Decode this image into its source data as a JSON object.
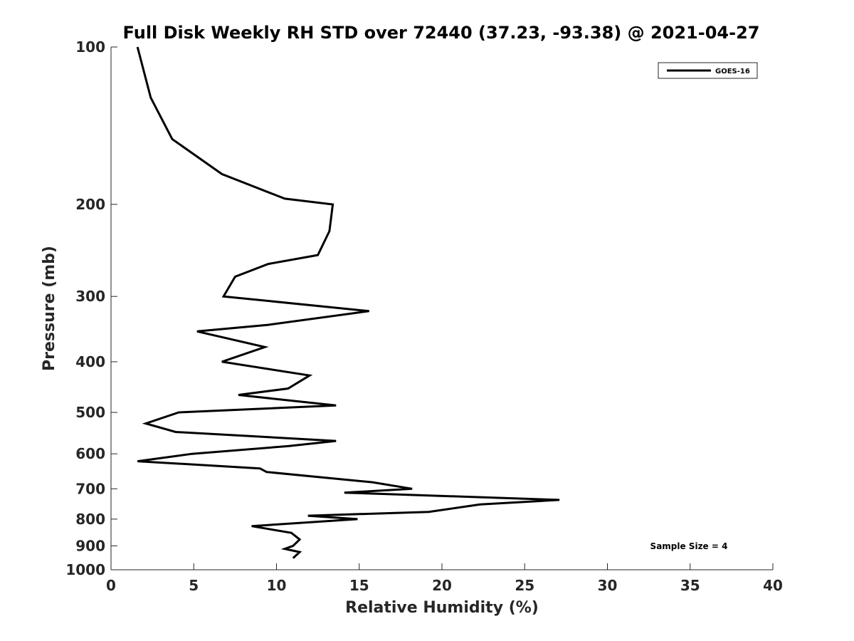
{
  "chart_data": {
    "type": "line",
    "title": "Full Disk Weekly RH STD over 72440 (37.23, -93.38) @ 2021-04-27",
    "xlabel": "Relative Humidity (%)",
    "ylabel": "Pressure (mb)",
    "xlim": [
      0,
      40
    ],
    "ylim": [
      100,
      1000
    ],
    "y_scale": "log",
    "y_inverted": true,
    "grid": false,
    "legend_position": "top-right",
    "x_ticks": [
      "0",
      "5",
      "10",
      "15",
      "20",
      "25",
      "30",
      "35",
      "40"
    ],
    "y_ticks": [
      "100",
      "200",
      "300",
      "400",
      "500",
      "600",
      "700",
      "800",
      "900",
      "1000"
    ],
    "annotation": "Sample Size = 4",
    "series": [
      {
        "name": "GOES-16",
        "color": "#000000",
        "points": [
          [
            1.6,
            100
          ],
          [
            2.4,
            125
          ],
          [
            3.7,
            150
          ],
          [
            6.7,
            175
          ],
          [
            10.5,
            195
          ],
          [
            13.4,
            200
          ],
          [
            13.2,
            225
          ],
          [
            12.5,
            250
          ],
          [
            9.5,
            260
          ],
          [
            7.5,
            275
          ],
          [
            6.8,
            300
          ],
          [
            15.6,
            320
          ],
          [
            9.5,
            340
          ],
          [
            5.2,
            350
          ],
          [
            9.3,
            375
          ],
          [
            6.7,
            400
          ],
          [
            12.0,
            425
          ],
          [
            10.7,
            450
          ],
          [
            7.7,
            463
          ],
          [
            13.6,
            485
          ],
          [
            4.1,
            500
          ],
          [
            2.1,
            525
          ],
          [
            3.9,
            545
          ],
          [
            13.6,
            567
          ],
          [
            10.7,
            580
          ],
          [
            4.9,
            600
          ],
          [
            1.6,
            620
          ],
          [
            9.0,
            640
          ],
          [
            9.4,
            650
          ],
          [
            15.8,
            680
          ],
          [
            18.2,
            700
          ],
          [
            14.1,
            712
          ],
          [
            27.1,
            735
          ],
          [
            22.3,
            750
          ],
          [
            19.2,
            775
          ],
          [
            11.9,
            788
          ],
          [
            14.9,
            800
          ],
          [
            8.5,
            825
          ],
          [
            10.9,
            850
          ],
          [
            11.4,
            875
          ],
          [
            11.0,
            900
          ],
          [
            10.5,
            912
          ],
          [
            11.4,
            925
          ],
          [
            11.0,
            950
          ]
        ]
      }
    ]
  }
}
